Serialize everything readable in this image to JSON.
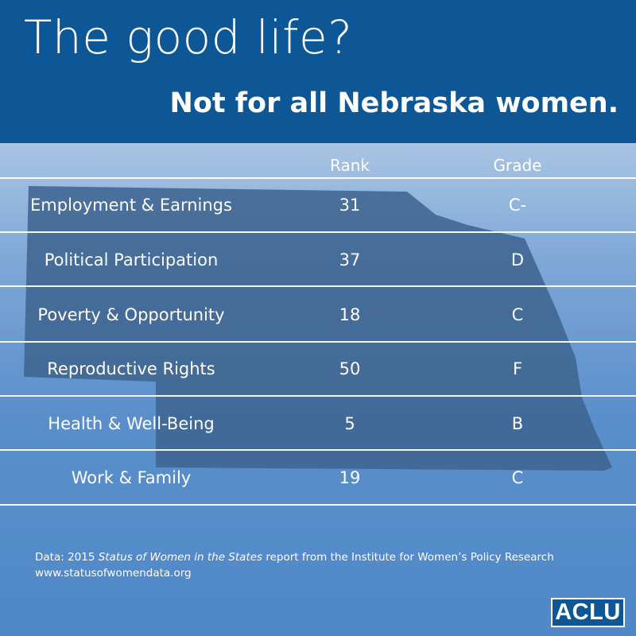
{
  "header": {
    "title": "The good life?",
    "subtitle": "Not for all Nebraska women."
  },
  "table": {
    "columns": {
      "rank": "Rank",
      "grade": "Grade"
    },
    "rows": [
      {
        "category": "Employment & Earnings",
        "rank": "31",
        "grade": "C-"
      },
      {
        "category": "Political Participation",
        "rank": "37",
        "grade": "D"
      },
      {
        "category": "Poverty & Opportunity",
        "rank": "18",
        "grade": "C"
      },
      {
        "category": "Reproductive Rights",
        "rank": "50",
        "grade": "F"
      },
      {
        "category": "Health & Well-Being",
        "rank": "5",
        "grade": "B"
      },
      {
        "category": "Work & Family",
        "rank": "19",
        "grade": "C"
      }
    ]
  },
  "footnote": {
    "prefix": "Data: 2015 ",
    "report_title": "Status of Women in the States",
    "suffix": " report from the Institute for Women’s Policy Research",
    "url": "www.statusofwomendata.org"
  },
  "logo": {
    "text": "ACLU"
  },
  "colors": {
    "header_bg": "#0e5796",
    "state_fill": "#3f6591",
    "logo_bg": "#0e5796"
  }
}
